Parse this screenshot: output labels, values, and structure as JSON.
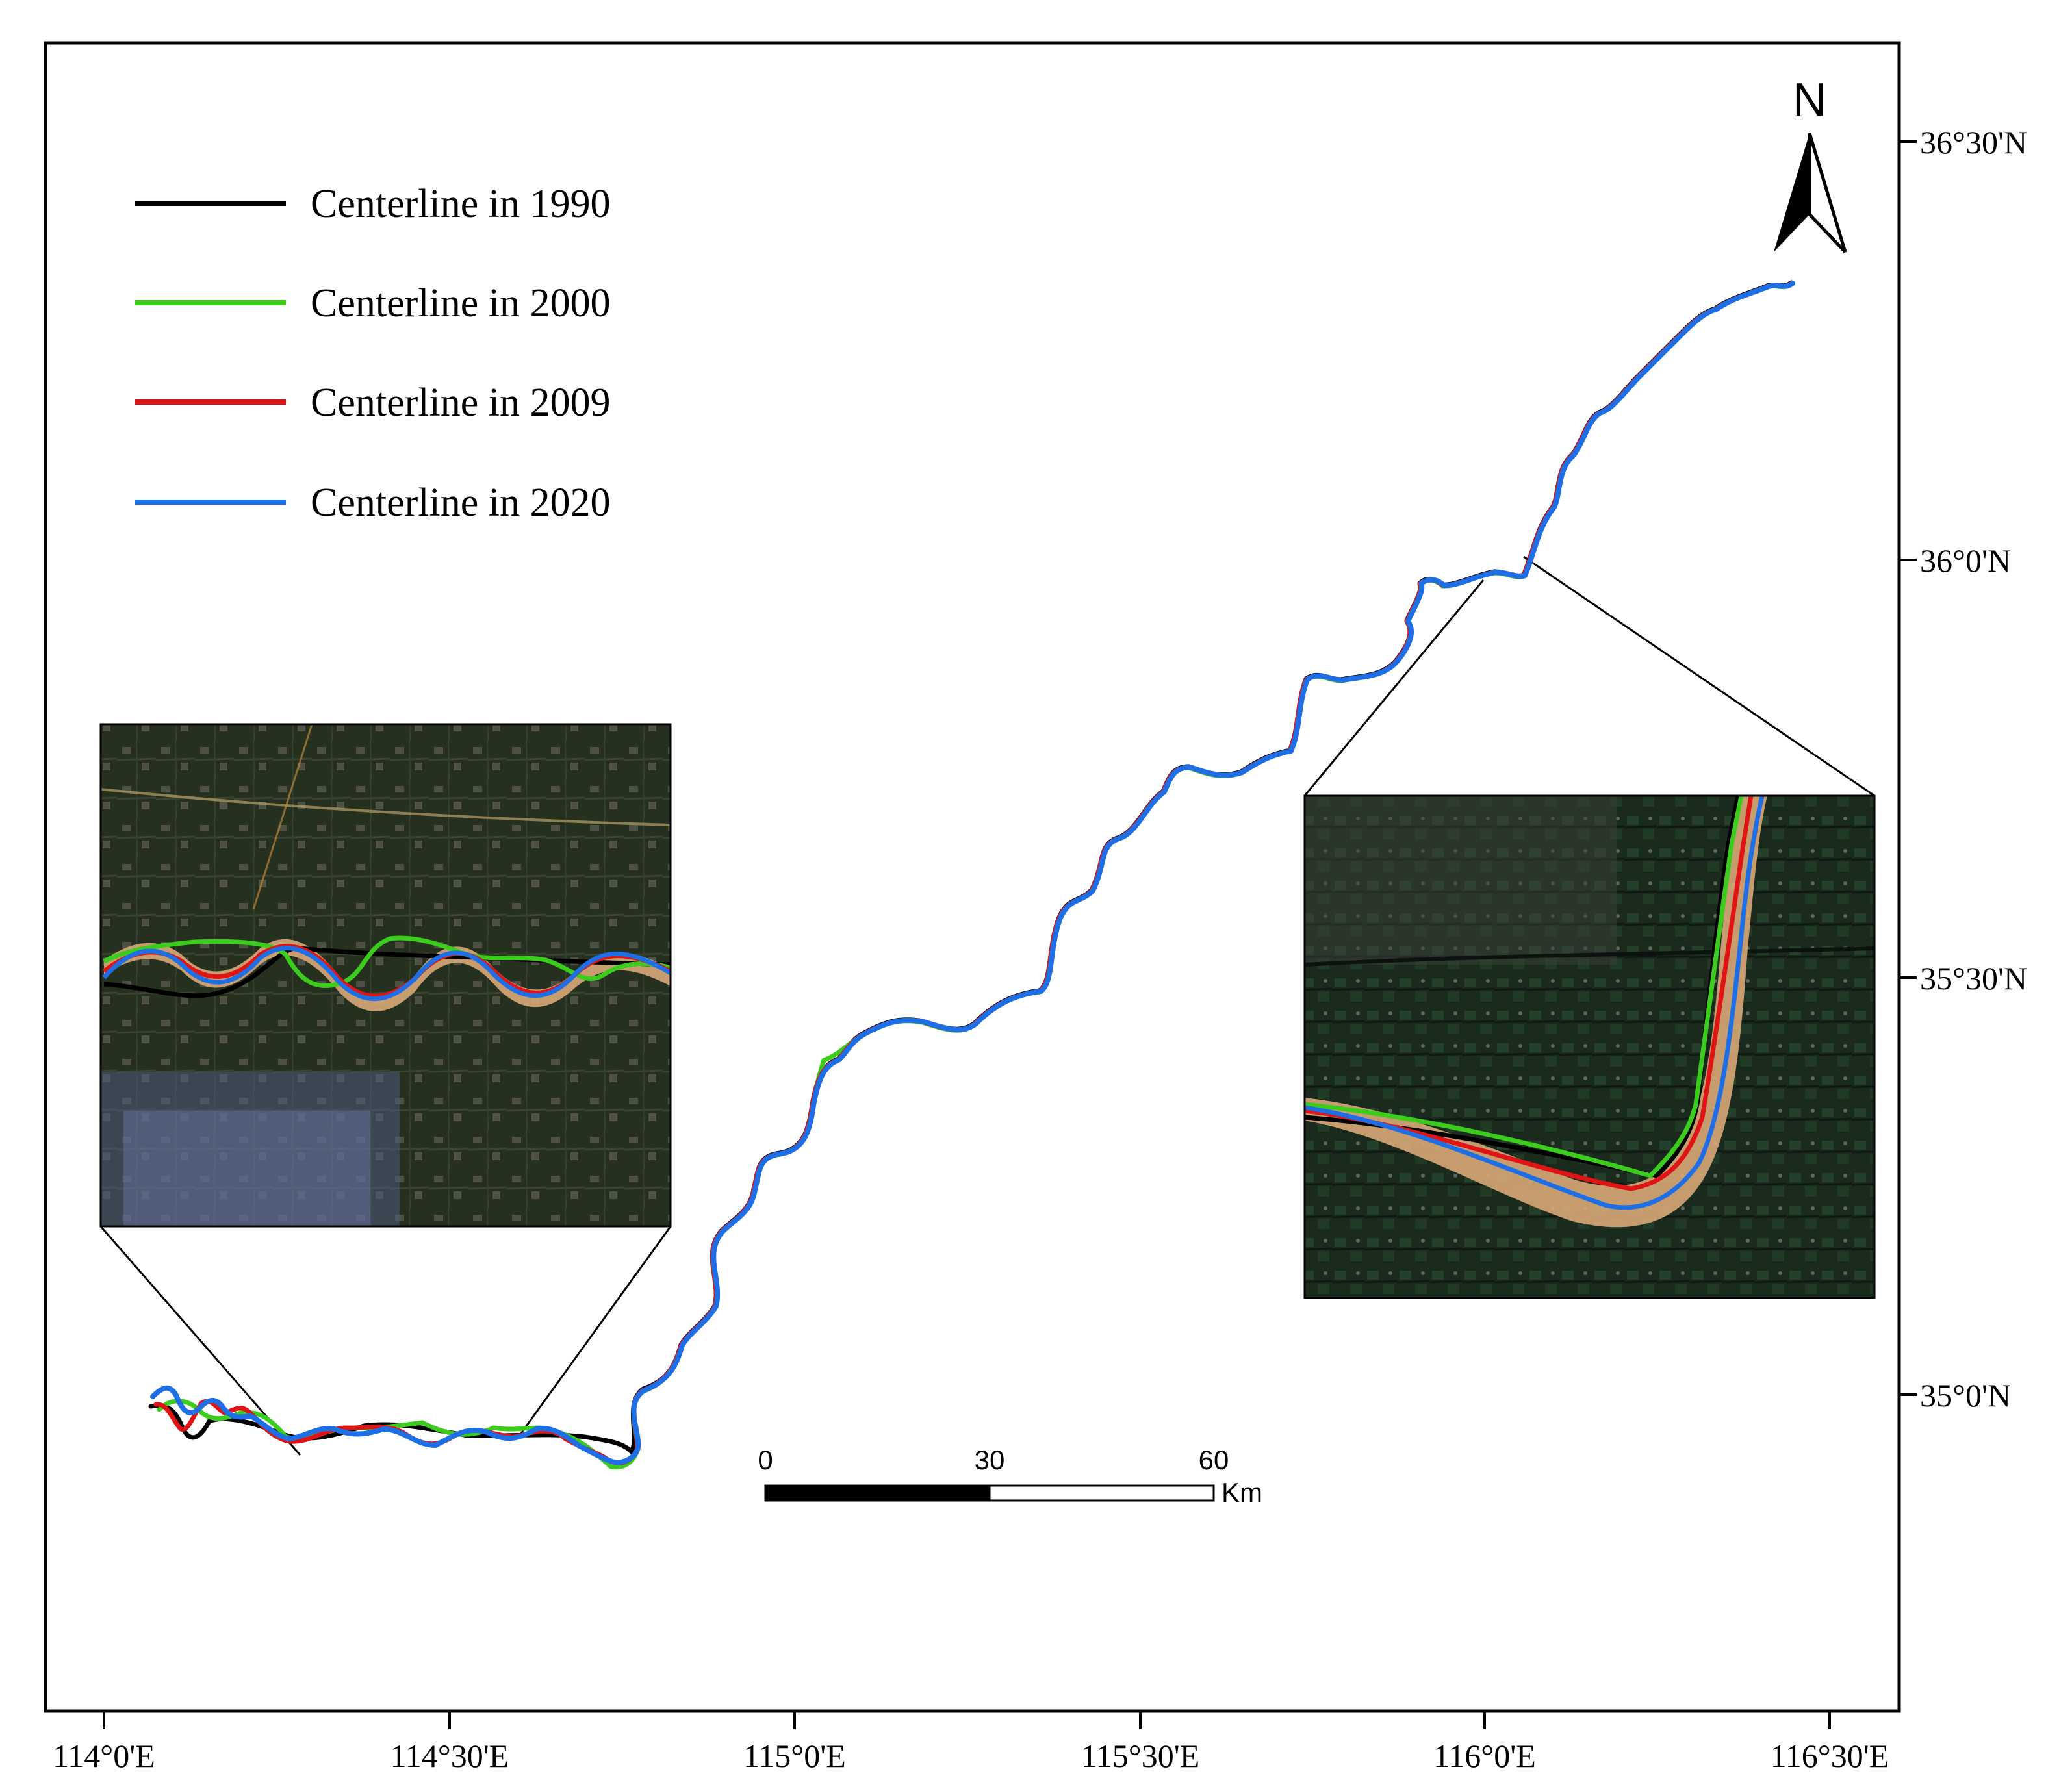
{
  "legend": {
    "items": [
      {
        "label": "Centerline in 1990",
        "color": "#000000"
      },
      {
        "label": "Centerline in 2000",
        "color": "#3ccc1e"
      },
      {
        "label": "Centerline in 2009",
        "color": "#e01414"
      },
      {
        "label": "Centerline in 2020",
        "color": "#1e6ee6"
      }
    ]
  },
  "north_arrow": {
    "label": "N",
    "icon": "north-arrow-icon"
  },
  "axes": {
    "longitude_ticks": [
      "114°0'E",
      "114°30'E",
      "115°0'E",
      "115°30'E",
      "116°0'E",
      "116°30'E"
    ],
    "latitude_ticks": [
      "36°30'N",
      "36°0'N",
      "35°30'N",
      "35°0'N"
    ]
  },
  "scale_bar": {
    "ticks": [
      "0",
      "30",
      "60"
    ],
    "unit": "Km"
  },
  "colors": {
    "frame": "#000000",
    "river_water": "#d9a878",
    "imagery_dark": "#1e2a20"
  }
}
